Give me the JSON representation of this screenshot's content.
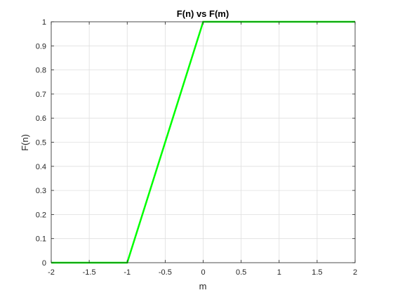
{
  "chart_data": {
    "type": "line",
    "title": "F(n) vs F(m)",
    "xlabel": "m",
    "ylabel": "F(n)",
    "xlim": [
      -2,
      2
    ],
    "ylim": [
      0,
      1
    ],
    "xticks": [
      "-2",
      "-1.5",
      "-1",
      "-0.5",
      "0",
      "0.5",
      "1",
      "1.5",
      "2"
    ],
    "yticks": [
      "0",
      "0.1",
      "0.2",
      "0.3",
      "0.4",
      "0.5",
      "0.6",
      "0.7",
      "0.8",
      "0.9",
      "1"
    ],
    "grid": true,
    "series": [
      {
        "color": "#00ff00",
        "x": [
          -2,
          -1,
          0,
          2
        ],
        "y": [
          0,
          0,
          1,
          1
        ]
      }
    ]
  }
}
